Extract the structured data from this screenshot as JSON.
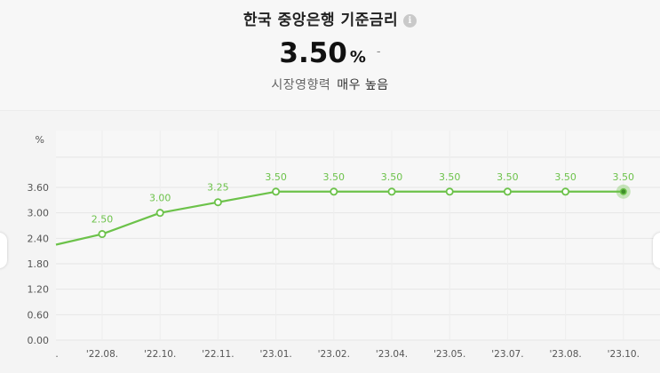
{
  "header": {
    "title": "한국 중앙은행 기준금리",
    "info_icon": "info-icon",
    "rate": "3.50",
    "rate_unit": "%",
    "rate_change": "-",
    "impact_label": "시장영향력",
    "impact_level": "매우 높음"
  },
  "colors": {
    "line": "#6cc24a",
    "label": "#6cc24a",
    "axis_text": "#555555",
    "grid": "#e6e6e6"
  },
  "chart_data": {
    "type": "line",
    "y_unit_label": "%",
    "y_ticks": [
      "0.00",
      "0.60",
      "1.20",
      "1.80",
      "2.40",
      "3.00",
      "3.60"
    ],
    "ylim": [
      0,
      4.2
    ],
    "x_tick_labels": [
      ".",
      "'22.08.",
      "'22.10.",
      "'22.11.",
      "'23.01.",
      "'23.02.",
      "'23.04.",
      "'23.05.",
      "'23.07.",
      "'23.08.",
      "'23.10."
    ],
    "points": [
      {
        "label": "'22.08.",
        "value": 2.5,
        "text": "2.50"
      },
      {
        "label": "'22.10.",
        "value": 3.0,
        "text": "3.00"
      },
      {
        "label": "'22.11.",
        "value": 3.25,
        "text": "3.25"
      },
      {
        "label": "'23.01.",
        "value": 3.5,
        "text": "3.50"
      },
      {
        "label": "'23.02.",
        "value": 3.5,
        "text": "3.50"
      },
      {
        "label": "'23.04.",
        "value": 3.5,
        "text": "3.50"
      },
      {
        "label": "'23.05.",
        "value": 3.5,
        "text": "3.50"
      },
      {
        "label": "'23.07.",
        "value": 3.5,
        "text": "3.50"
      },
      {
        "label": "'23.08.",
        "value": 3.5,
        "text": "3.50"
      },
      {
        "label": "'23.10.",
        "value": 3.5,
        "text": "3.50"
      }
    ],
    "lead_in_value": 2.25,
    "highlight_last": true,
    "grid": true
  }
}
